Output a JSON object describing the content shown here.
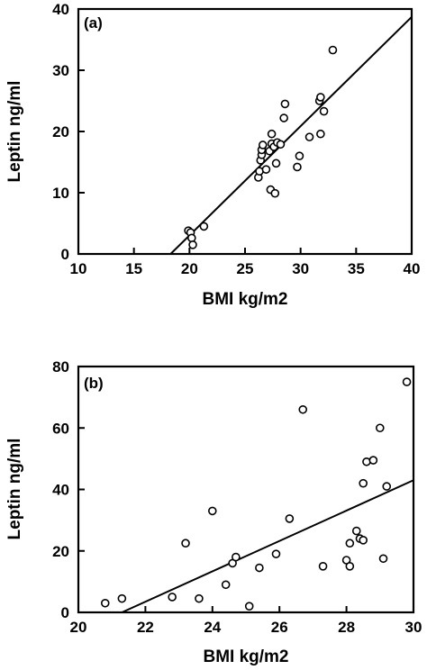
{
  "chart_data": [
    {
      "type": "scatter",
      "panel_label": "(a)",
      "xlabel": "BMI kg/m2",
      "ylabel": "Leptin ng/ml",
      "xlim": [
        10,
        40
      ],
      "ylim": [
        0,
        40
      ],
      "xticks": [
        10,
        15,
        20,
        25,
        30,
        35,
        40
      ],
      "yticks": [
        0,
        10,
        20,
        30,
        40
      ],
      "grid": false,
      "marker": "open-circle",
      "points": [
        [
          19.9,
          3.8
        ],
        [
          20.1,
          3.5
        ],
        [
          20.2,
          2.6
        ],
        [
          20.3,
          1.5
        ],
        [
          21.3,
          4.5
        ],
        [
          26.2,
          12.5
        ],
        [
          26.3,
          13.5
        ],
        [
          26.4,
          15.3
        ],
        [
          26.5,
          16.2
        ],
        [
          26.5,
          17.0
        ],
        [
          26.6,
          17.8
        ],
        [
          26.9,
          13.8
        ],
        [
          27.2,
          16.8
        ],
        [
          27.3,
          10.5
        ],
        [
          27.4,
          18.0
        ],
        [
          27.4,
          19.6
        ],
        [
          27.6,
          17.5
        ],
        [
          27.7,
          9.9
        ],
        [
          27.8,
          14.8
        ],
        [
          27.9,
          18.2
        ],
        [
          28.2,
          17.9
        ],
        [
          28.5,
          22.2
        ],
        [
          28.6,
          24.5
        ],
        [
          29.7,
          14.2
        ],
        [
          29.9,
          16.0
        ],
        [
          30.8,
          19.1
        ],
        [
          31.7,
          25.0
        ],
        [
          31.8,
          25.6
        ],
        [
          31.8,
          19.6
        ],
        [
          32.1,
          23.3
        ],
        [
          32.9,
          33.3
        ]
      ],
      "regression_line": {
        "x": [
          18.3,
          40.0
        ],
        "y": [
          0.0,
          38.7
        ]
      }
    },
    {
      "type": "scatter",
      "panel_label": "(b)",
      "xlabel": "BMI kg/m2",
      "ylabel": "Leptin ng/ml",
      "xlim": [
        20,
        30
      ],
      "ylim": [
        0,
        80
      ],
      "xticks": [
        20,
        22,
        24,
        26,
        28,
        30
      ],
      "yticks": [
        0,
        20,
        40,
        60,
        80
      ],
      "grid": false,
      "marker": "open-circle",
      "points": [
        [
          20.8,
          3.0
        ],
        [
          21.3,
          4.5
        ],
        [
          22.8,
          5.0
        ],
        [
          23.2,
          22.5
        ],
        [
          23.6,
          4.5
        ],
        [
          24.0,
          33.0
        ],
        [
          24.4,
          9.0
        ],
        [
          24.6,
          16.0
        ],
        [
          24.7,
          18.0
        ],
        [
          25.1,
          2.0
        ],
        [
          25.4,
          14.5
        ],
        [
          25.9,
          19.0
        ],
        [
          26.3,
          30.5
        ],
        [
          26.7,
          66.0
        ],
        [
          27.3,
          15.0
        ],
        [
          28.0,
          17.0
        ],
        [
          28.1,
          22.5
        ],
        [
          28.1,
          15.0
        ],
        [
          28.3,
          26.5
        ],
        [
          28.4,
          24.0
        ],
        [
          28.5,
          23.5
        ],
        [
          28.5,
          42.0
        ],
        [
          28.6,
          49.0
        ],
        [
          28.8,
          49.5
        ],
        [
          29.0,
          60.0
        ],
        [
          29.1,
          17.5
        ],
        [
          29.2,
          41.0
        ],
        [
          29.8,
          75.0
        ]
      ],
      "regression_line": {
        "x": [
          21.3,
          30.0
        ],
        "y": [
          0.0,
          43.0
        ]
      }
    }
  ]
}
